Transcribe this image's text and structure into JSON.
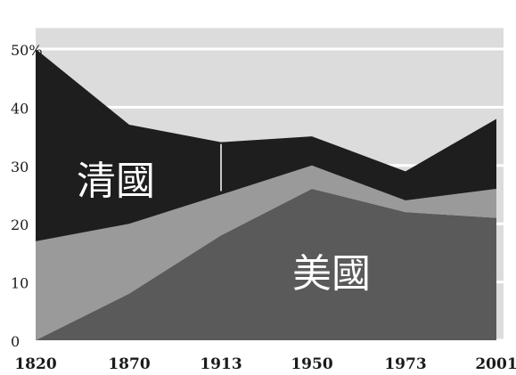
{
  "chart_data": {
    "type": "area",
    "stacked": true,
    "x": [
      "1820",
      "1870",
      "1913",
      "1950",
      "1973",
      "2001"
    ],
    "y_ticks": [
      "50%",
      "40",
      "30",
      "20",
      "10",
      "0"
    ],
    "ylim": [
      0,
      50
    ],
    "grid": true,
    "series": [
      {
        "name": "美國",
        "values": [
          0,
          8,
          18,
          26,
          22,
          21
        ]
      },
      {
        "values": [
          17,
          12,
          7,
          4,
          2,
          5
        ]
      },
      {
        "name": "清國",
        "values": [
          33,
          17,
          9,
          5,
          5,
          12
        ]
      }
    ],
    "colors": {
      "background": "#dcdcdc",
      "grid": "#ffffff",
      "bottom_band": "#5a5a5a",
      "middle_band": "#9a9a9a",
      "top_band": "#1e1e1e",
      "label_text": "#ffffff",
      "axis_text": "#1a1a1a"
    }
  }
}
